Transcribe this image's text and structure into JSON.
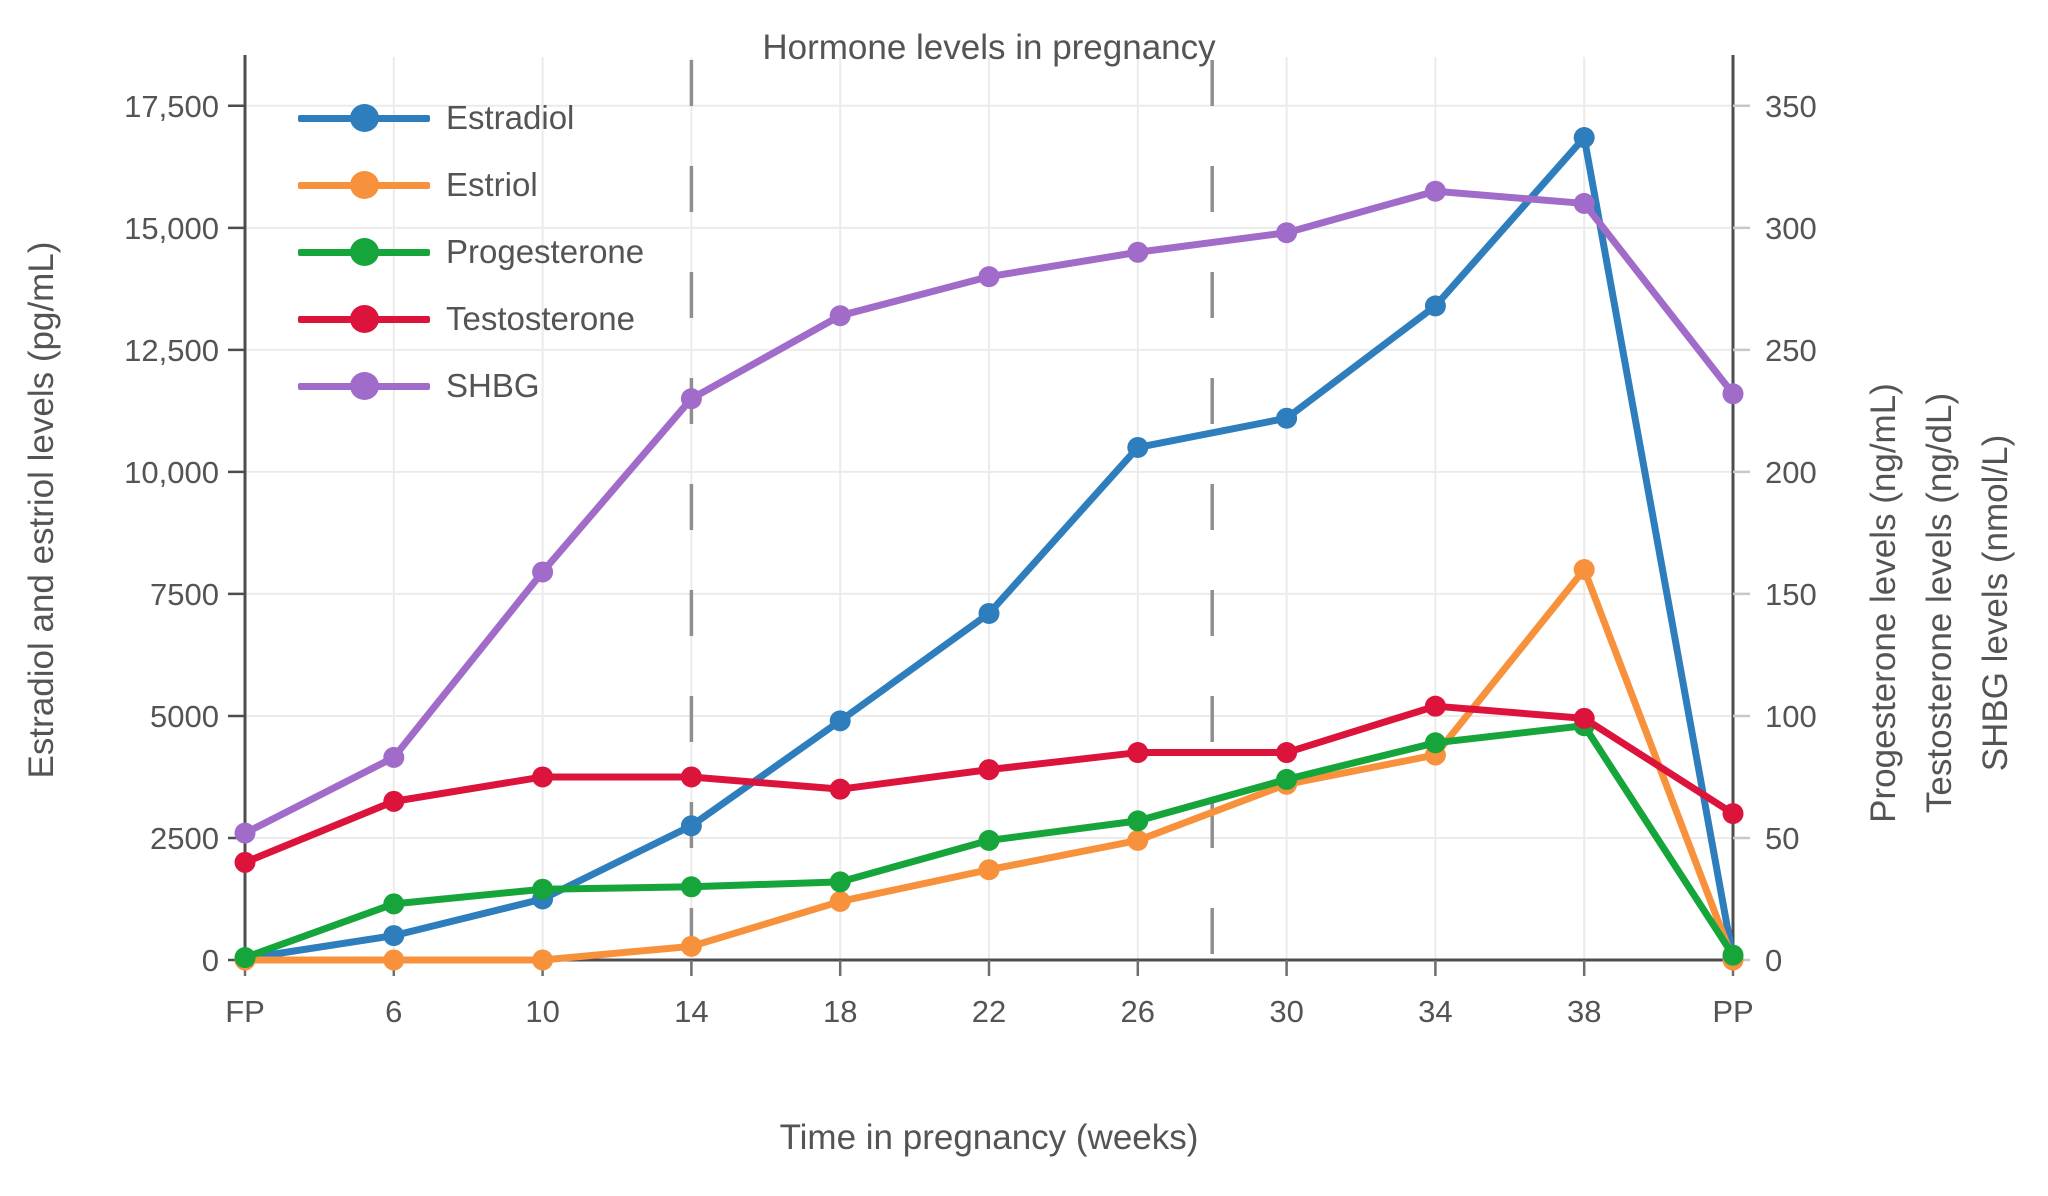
{
  "title": "Hormone levels in pregnancy",
  "labels": {
    "x_axis": "Time in pregnancy (weeks)",
    "y_left": "Estradiol and estriol levels (pg/mL)",
    "y_right_lines": [
      "Progesterone levels (ng/mL)",
      "Testosterone levels (ng/dL)",
      "SHBG levels (nmol/L)"
    ]
  },
  "colors": {
    "estradiol": "#2E7EBD",
    "estriol": "#F8913B",
    "progesterone": "#16A53B",
    "testosterone": "#DC143C",
    "shbg": "#A06BC9",
    "grid": "#EBEBEB",
    "spine": "#4D4D4D",
    "dashed_line": "#8F8F8F",
    "tick_mark": "#6E6E6E",
    "text": "#545454"
  },
  "chart_data": {
    "type": "line",
    "title": "Hormone levels in pregnancy",
    "xlabel": "Time in pregnancy (weeks)",
    "ylabel_left": "Estradiol and estriol levels (pg/mL)",
    "ylabel_right": "Progesterone levels (ng/mL); Testosterone levels (ng/dL); SHBG levels (nmol/L)",
    "categories": [
      "FP",
      "6",
      "10",
      "14",
      "18",
      "22",
      "26",
      "30",
      "34",
      "38",
      "PP"
    ],
    "series": [
      {
        "name": "Estradiol",
        "unit": "pg/mL",
        "axis": "left",
        "color": "#2E7EBD",
        "values": [
          30,
          500,
          1250,
          2750,
          4900,
          7100,
          10500,
          11100,
          13400,
          16850,
          30
        ]
      },
      {
        "name": "Estriol",
        "unit": "pg/mL",
        "axis": "left",
        "color": "#F8913B",
        "values": [
          0,
          0,
          0,
          280,
          1200,
          1850,
          2450,
          3600,
          4200,
          8000,
          0
        ]
      },
      {
        "name": "Progesterone",
        "unit": "ng/mL",
        "axis": "right",
        "color": "#16A53B",
        "values": [
          1,
          23,
          29,
          30,
          32,
          49,
          57,
          74,
          89,
          96,
          2
        ]
      },
      {
        "name": "Testosterone",
        "unit": "ng/dL",
        "axis": "right",
        "color": "#DC143C",
        "values": [
          40,
          65,
          75,
          75,
          70,
          78,
          85,
          85,
          104,
          99,
          60
        ]
      },
      {
        "name": "SHBG",
        "unit": "nmol/L",
        "axis": "right",
        "color": "#A06BC9",
        "values": [
          52,
          83,
          159,
          230,
          264,
          280,
          290,
          298,
          315,
          310,
          232
        ]
      }
    ],
    "left_axis": {
      "range": [
        0,
        18500
      ],
      "ticks": [
        {
          "v": 0,
          "label": "0"
        },
        {
          "v": 2500,
          "label": "2500"
        },
        {
          "v": 5000,
          "label": "5000"
        },
        {
          "v": 7500,
          "label": "7500"
        },
        {
          "v": 10000,
          "label": "10,000"
        },
        {
          "v": 12500,
          "label": "12,500"
        },
        {
          "v": 15000,
          "label": "15,000"
        },
        {
          "v": 17500,
          "label": "17,500"
        }
      ]
    },
    "right_axis": {
      "range": [
        0,
        370
      ],
      "ticks": [
        {
          "v": 0,
          "label": "0"
        },
        {
          "v": 50,
          "label": "50"
        },
        {
          "v": 100,
          "label": "100"
        },
        {
          "v": 150,
          "label": "150"
        },
        {
          "v": 200,
          "label": "200"
        },
        {
          "v": 250,
          "label": "250"
        },
        {
          "v": 300,
          "label": "300"
        },
        {
          "v": 350,
          "label": "350"
        }
      ]
    },
    "dashed_vertical_lines_at_category_index": [
      3,
      6.5
    ],
    "grid": true,
    "legend_position": "top-left-inside"
  }
}
